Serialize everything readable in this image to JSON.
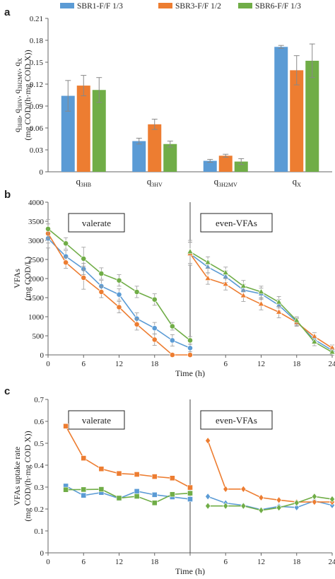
{
  "legend": [
    {
      "name": "SBR1-F/F 1/3",
      "color": "#5b9bd5"
    },
    {
      "name": "SBR3-F/F 1/2",
      "color": "#ed7d31"
    },
    {
      "name": "SBR6-F/F 1/3",
      "color": "#70ad47"
    }
  ],
  "chart_data": [
    {
      "panel": "a",
      "type": "bar",
      "categories": [
        "q3HB",
        "q3HV",
        "q3H2MV",
        "qX"
      ],
      "category_labels": [
        {
          "main": "q",
          "sub": "3HB"
        },
        {
          "main": "q",
          "sub": "3HV"
        },
        {
          "main": "q",
          "sub": "3H2MV"
        },
        {
          "main": "q",
          "sub": "X"
        }
      ],
      "series": [
        {
          "name": "SBR1-F/F 1/3",
          "values": [
            0.104,
            0.042,
            0.015,
            0.171
          ],
          "errors": [
            0.021,
            0.004,
            0.002,
            0.002
          ]
        },
        {
          "name": "SBR3-F/F 1/2",
          "values": [
            0.118,
            0.065,
            0.022,
            0.139
          ],
          "errors": [
            0.014,
            0.007,
            0.002,
            0.02
          ]
        },
        {
          "name": "SBR6-F/F 1/3",
          "values": [
            0.112,
            0.038,
            0.014,
            0.152
          ],
          "errors": [
            0.017,
            0.004,
            0.004,
            0.023
          ]
        }
      ],
      "ylabel_line1": "q3HB, q3HV, q3H2MV, qX",
      "ylabel_line1_parts": [
        {
          "main": "q",
          "sub": "3HB"
        },
        {
          "main": ", q",
          "sub": "3HV"
        },
        {
          "main": ", q",
          "sub": "3H2MV"
        },
        {
          "main": ", q",
          "sub": "X"
        }
      ],
      "ylabel_line2": "(mg COD/(h·mg COD X))",
      "ylim": [
        0,
        0.21
      ],
      "yticks": [
        "0",
        "0.03",
        "0.06",
        "0.09",
        "0.12",
        "0.15",
        "0.18",
        "0.21"
      ],
      "grid": false
    },
    {
      "panel": "b",
      "type": "line",
      "ylabel_line1": "VFAs",
      "ylabel_line2": "(mg COD/L)",
      "xlabel": "Time (h)",
      "ylim": [
        0,
        4000
      ],
      "yticks": [
        "0",
        "500",
        "1000",
        "1500",
        "2000",
        "2500",
        "3000",
        "3500",
        "4000"
      ],
      "xticks_left": [
        "0",
        "6",
        "12",
        "18"
      ],
      "xticks_right": [
        "0",
        "6",
        "12",
        "18",
        "24"
      ],
      "x_left": [
        0,
        3,
        6,
        9,
        12,
        15,
        18,
        21,
        24
      ],
      "x_right": [
        0,
        3,
        6,
        9,
        12,
        15,
        18,
        21,
        24
      ],
      "box_left": "valerate",
      "box_right": "even-VFAs",
      "series": [
        {
          "name": "SBR1-F/F 1/3",
          "marker": "circle",
          "left": [
            3050,
            2580,
            2250,
            1800,
            1580,
            950,
            700,
            380,
            180
          ],
          "left_err": [
            250,
            150,
            150,
            150,
            150,
            150,
            150,
            150,
            100
          ],
          "right": [
            2650,
            2300,
            2050,
            1700,
            1600,
            1300,
            870,
            400,
            120
          ],
          "right_err": [
            300,
            150,
            150,
            150,
            150,
            150,
            100,
            100,
            80
          ]
        },
        {
          "name": "SBR3-F/F 1/2",
          "marker": "circle",
          "left": [
            3180,
            2420,
            2020,
            1650,
            1250,
            800,
            400,
            0,
            0
          ],
          "left_err": [
            250,
            150,
            300,
            150,
            150,
            150,
            150,
            0,
            0
          ],
          "right": [
            2650,
            2000,
            1850,
            1550,
            1330,
            1120,
            850,
            480,
            180
          ],
          "right_err": [
            300,
            150,
            150,
            150,
            150,
            150,
            100,
            100,
            80
          ]
        },
        {
          "name": "SBR6-F/F 1/3",
          "marker": "circle",
          "left": [
            3300,
            2920,
            2520,
            2130,
            1950,
            1650,
            1450,
            750,
            380
          ],
          "left_err": [
            250,
            150,
            300,
            150,
            150,
            150,
            150,
            100,
            100
          ],
          "right": [
            2700,
            2420,
            2150,
            1800,
            1650,
            1380,
            900,
            340,
            70
          ],
          "right_err": [
            300,
            150,
            150,
            150,
            150,
            150,
            100,
            100,
            80
          ]
        }
      ]
    },
    {
      "panel": "c",
      "type": "line",
      "ylabel_line1": "VFAs uptake rate",
      "ylabel_line2": "(mg COD/(h·mg COD X))",
      "xlabel": "Time (h)",
      "ylim": [
        0,
        0.7
      ],
      "yticks": [
        "0",
        "0.1",
        "0.2",
        "0.3",
        "0.4",
        "0.5",
        "0.6",
        "0.7"
      ],
      "xticks_left": [
        "0",
        "6",
        "12",
        "18"
      ],
      "xticks_right": [
        "0",
        "6",
        "12",
        "18",
        "24"
      ],
      "x_left": [
        3,
        6,
        9,
        12,
        15,
        18,
        21,
        24
      ],
      "x_right": [
        3,
        6,
        9,
        12,
        15,
        18,
        21,
        24
      ],
      "box_left": "valerate",
      "box_right": "even-VFAs",
      "series": [
        {
          "name": "SBR1-F/F 1/3",
          "marker_left": "square",
          "marker_right": "diamond",
          "left": [
            0.305,
            0.262,
            0.275,
            0.248,
            0.281,
            0.265,
            0.255,
            0.245
          ],
          "right": [
            0.257,
            0.227,
            0.217,
            0.197,
            0.212,
            0.207,
            0.237,
            0.217
          ]
        },
        {
          "name": "SBR3-F/F 1/2",
          "marker_left": "square",
          "marker_right": "diamond",
          "left": [
            0.578,
            0.432,
            0.383,
            0.362,
            0.358,
            0.348,
            0.341,
            0.298
          ],
          "right": [
            0.512,
            0.291,
            0.291,
            0.252,
            0.241,
            0.232,
            0.232,
            0.232
          ]
        },
        {
          "name": "SBR6-F/F 1/3",
          "marker_left": "square",
          "marker_right": "diamond",
          "left": [
            0.288,
            0.289,
            0.29,
            0.25,
            0.258,
            0.228,
            0.267,
            0.272
          ],
          "right": [
            0.214,
            0.214,
            0.214,
            0.194,
            0.206,
            0.228,
            0.257,
            0.245
          ]
        }
      ]
    }
  ]
}
